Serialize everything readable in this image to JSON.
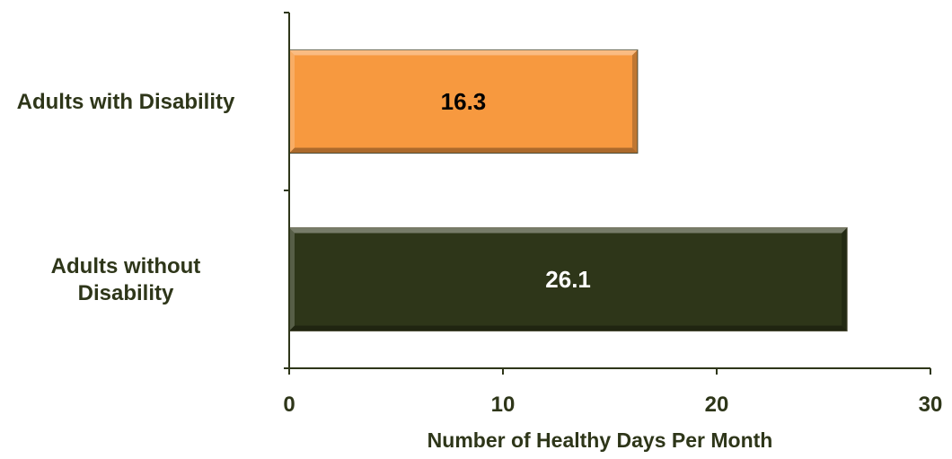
{
  "chart_data": {
    "type": "bar",
    "orientation": "horizontal",
    "categories": [
      "Adults with Disability",
      "Adults without Disability"
    ],
    "category_label_lines": [
      [
        "Adults with Disability"
      ],
      [
        "Adults without",
        "Disability"
      ]
    ],
    "values": [
      16.3,
      26.1
    ],
    "data_labels": [
      "16.3",
      "26.1"
    ],
    "bar_colors": [
      "#F7993F",
      "#2E3619"
    ],
    "data_label_colors": [
      "#000000",
      "#ffffff"
    ],
    "axis_color": "#2E3619",
    "xlabel": "Number of Healthy Days Per Month",
    "ylabel": "",
    "title": "",
    "xlim": [
      0,
      30
    ],
    "xticks": [
      0,
      10,
      20,
      30
    ],
    "grid": false,
    "legend": "none"
  }
}
